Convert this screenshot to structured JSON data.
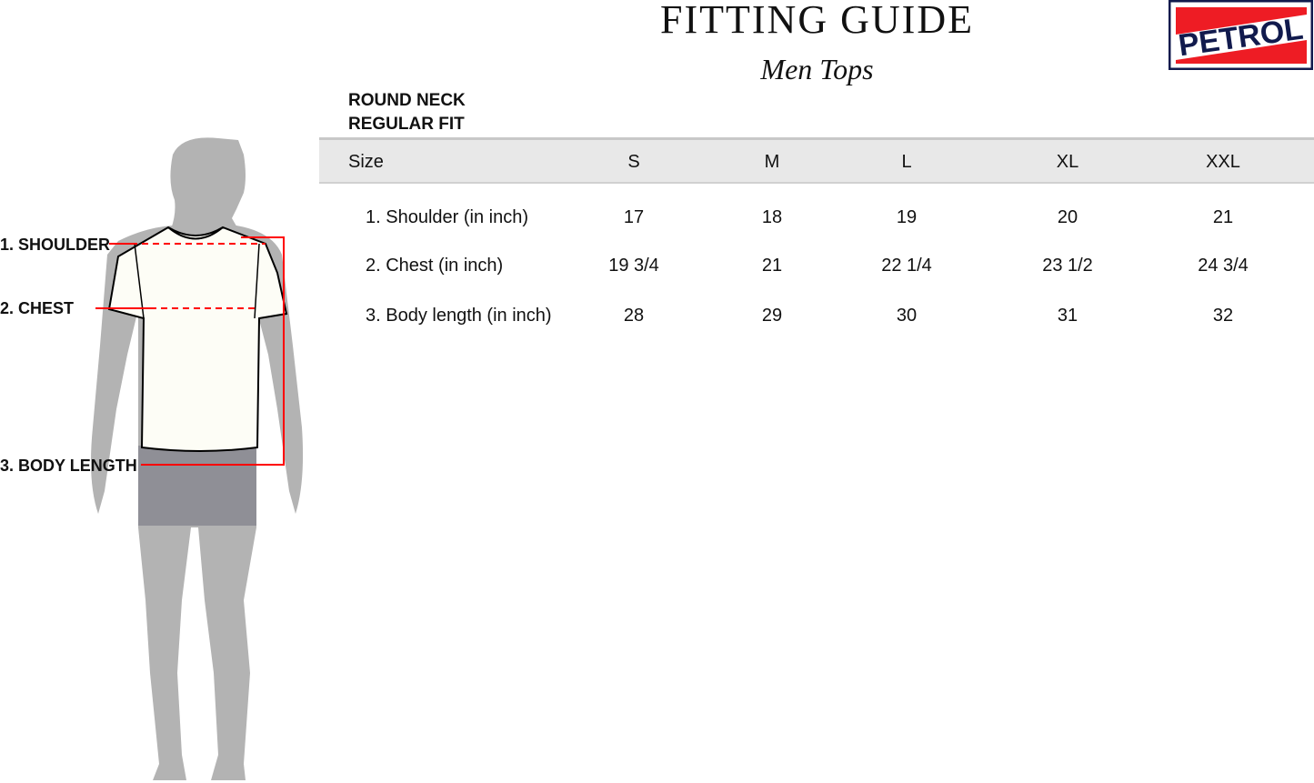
{
  "header": {
    "title": "FITTING GUIDE",
    "subtitle": "Men Tops"
  },
  "logo": {
    "text": "PETROL",
    "colors": {
      "red": "#ee1c24",
      "navy": "#111a4d",
      "white": "#ffffff"
    }
  },
  "style": {
    "line1": "ROUND NECK",
    "line2": "REGULAR FIT"
  },
  "figure": {
    "labels": [
      "1. SHOULDER",
      "2. CHEST",
      "3. BODY LENGTH"
    ],
    "line_color": "#ff0000"
  },
  "table": {
    "size_header": "Size",
    "sizes": [
      "S",
      "M",
      "L",
      "XL",
      "XXL"
    ],
    "rows": [
      {
        "label": "1. Shoulder (in inch)",
        "values": [
          "17",
          "18",
          "19",
          "20",
          "21"
        ]
      },
      {
        "label": "2. Chest (in inch)",
        "values": [
          "19 3/4",
          "21",
          "22 1/4",
          "23 1/2",
          "24 3/4"
        ]
      },
      {
        "label": "3. Body length (in inch)",
        "values": [
          "28",
          "29",
          "30",
          "31",
          "32"
        ]
      }
    ]
  }
}
